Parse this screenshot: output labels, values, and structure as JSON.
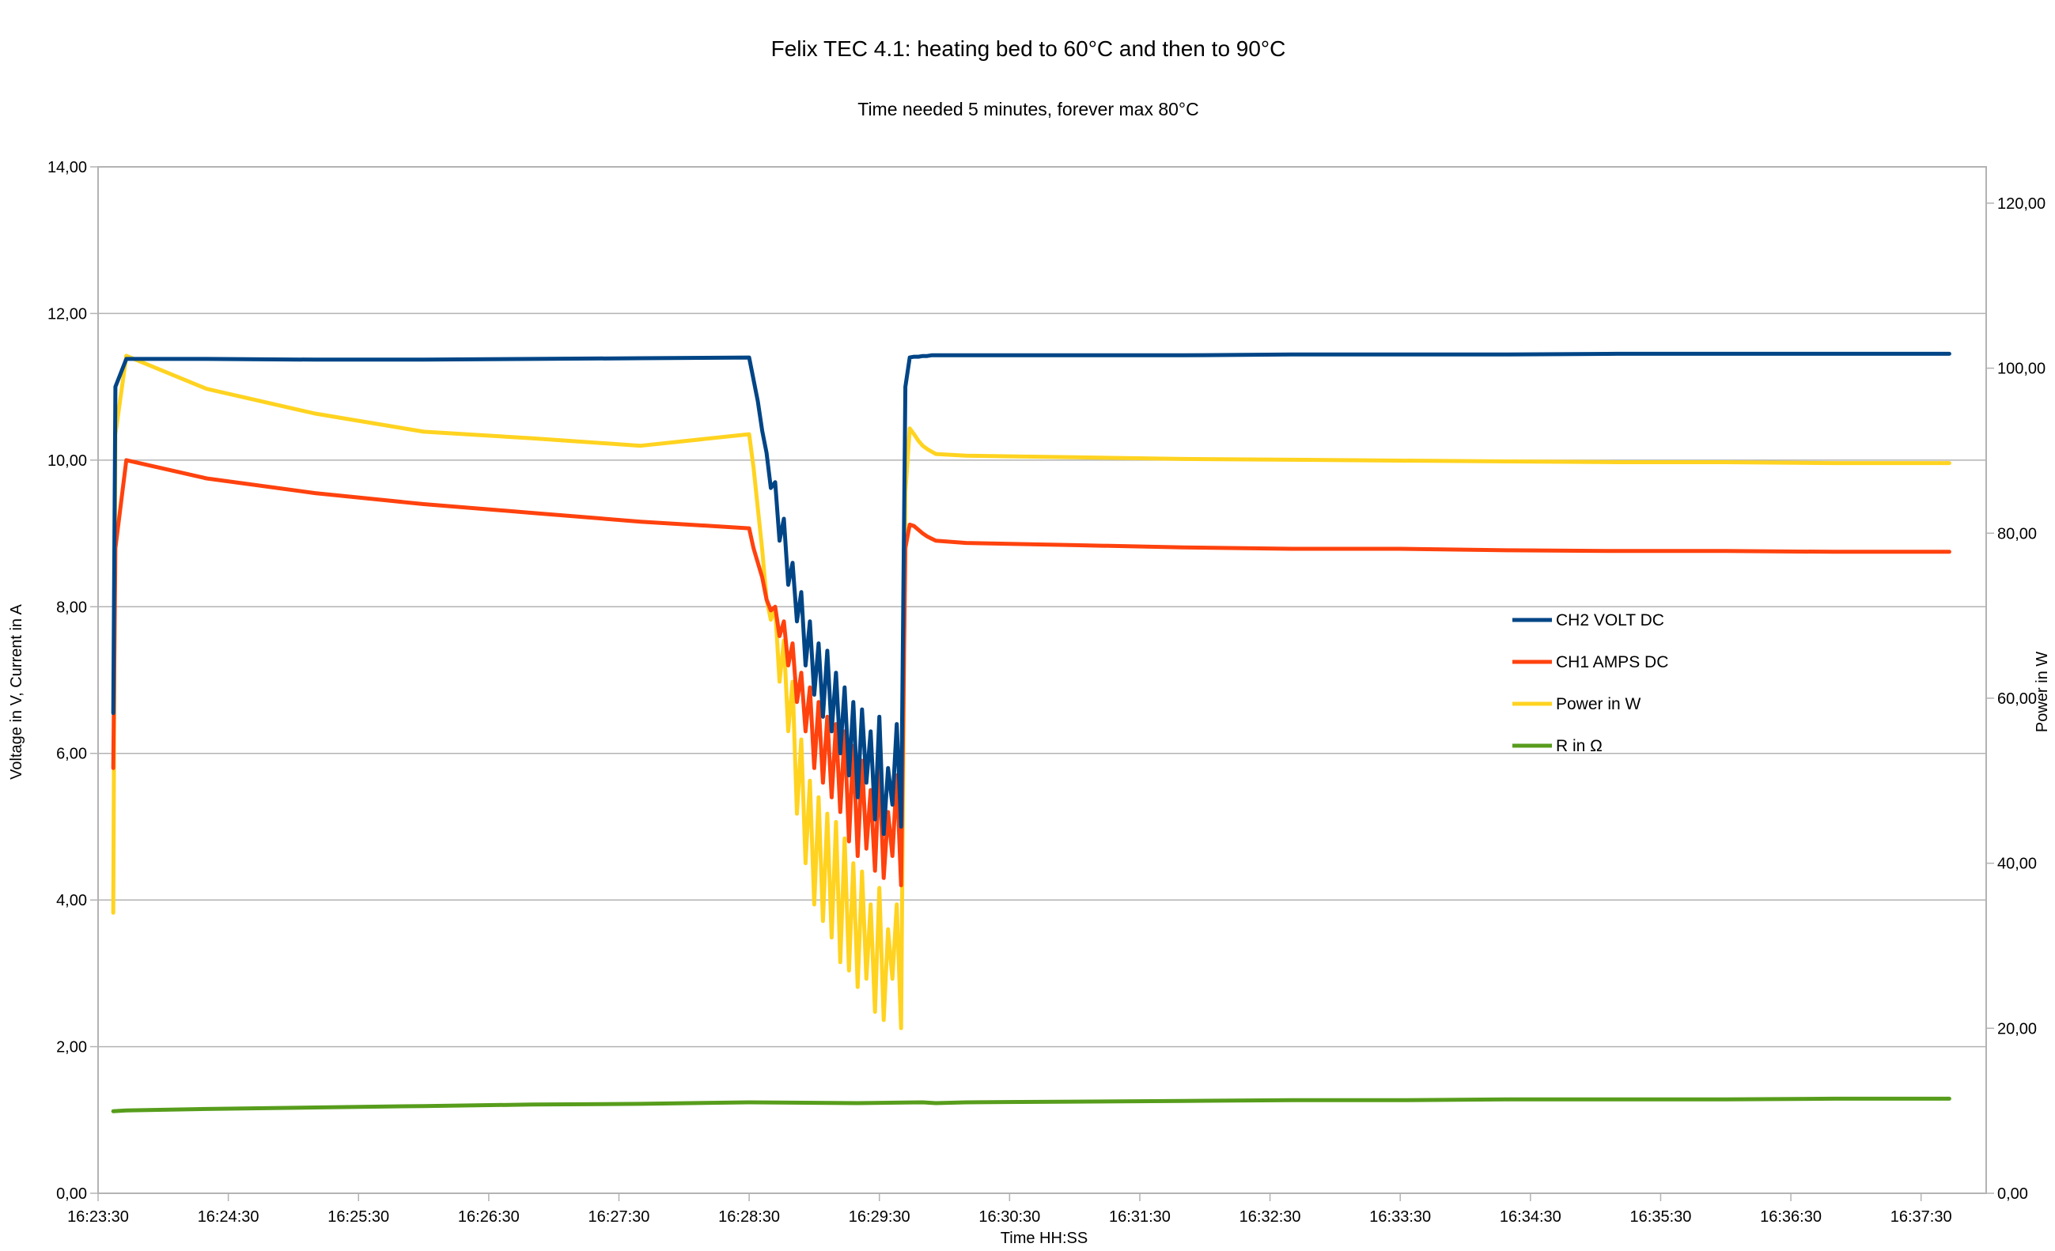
{
  "chart_data": {
    "type": "line",
    "title": "Felix TEC 4.1: heating bed to 60°C and then to 90°C",
    "subtitle": "Time needed 5 minutes, forever max 80°C",
    "xlabel": "Time HH:SS",
    "ylabel_left": "Voltage in V, Current in A",
    "ylabel_right": "Power in W",
    "x_tick_labels": [
      "16:23:30",
      "16:24:30",
      "16:25:30",
      "16:26:30",
      "16:27:30",
      "16:28:30",
      "16:29:30",
      "16:30:30",
      "16:31:30",
      "16:32:30",
      "16:33:30",
      "16:34:30",
      "16:35:30",
      "16:36:30",
      "16:37:30"
    ],
    "y_left_ticks": [
      "0,00",
      "2,00",
      "4,00",
      "6,00",
      "8,00",
      "10,00",
      "12,00",
      "14,00"
    ],
    "y_right_ticks": [
      "0,00",
      "20,00",
      "40,00",
      "60,00",
      "80,00",
      "100,00",
      "120,00"
    ],
    "y_left_lim": [
      0,
      14
    ],
    "y_right_lim": [
      0,
      124.4
    ],
    "x_unit": "seconds since 16:23:30",
    "x_lim": [
      0,
      870
    ],
    "grid": "horizontal",
    "legend_position": "right",
    "series": [
      {
        "name": "CH2 VOLT DC",
        "color": "#004586",
        "axis": "left",
        "x": [
          7,
          8,
          13,
          50,
          100,
          150,
          200,
          250,
          300,
          302,
          304,
          306,
          308,
          310,
          312,
          314,
          316,
          318,
          320,
          322,
          324,
          326,
          328,
          330,
          332,
          334,
          336,
          338,
          340,
          342,
          344,
          346,
          348,
          350,
          352,
          354,
          356,
          358,
          360,
          362,
          364,
          366,
          368,
          370,
          372,
          374,
          376,
          378,
          380,
          382,
          384,
          386,
          400,
          450,
          500,
          550,
          600,
          650,
          700,
          750,
          800,
          853
        ],
        "y": [
          6.55,
          11.0,
          11.38,
          11.38,
          11.37,
          11.37,
          11.38,
          11.39,
          11.4,
          11.1,
          10.8,
          10.4,
          10.1,
          9.62,
          9.7,
          8.9,
          9.2,
          8.3,
          8.6,
          7.8,
          8.2,
          7.2,
          7.8,
          6.8,
          7.5,
          6.5,
          7.4,
          6.3,
          7.1,
          6.0,
          6.9,
          5.7,
          6.7,
          5.4,
          6.6,
          5.6,
          6.3,
          5.1,
          6.5,
          4.9,
          5.8,
          5.3,
          6.4,
          5.0,
          11.0,
          11.4,
          11.41,
          11.41,
          11.42,
          11.42,
          11.43,
          11.43,
          11.43,
          11.43,
          11.43,
          11.44,
          11.44,
          11.44,
          11.45,
          11.45,
          11.45,
          11.45
        ]
      },
      {
        "name": "CH1 AMPS DC",
        "color": "#ff420e",
        "axis": "left",
        "x": [
          7,
          8,
          13,
          50,
          100,
          150,
          200,
          250,
          300,
          302,
          304,
          306,
          308,
          310,
          312,
          314,
          316,
          318,
          320,
          322,
          324,
          326,
          328,
          330,
          332,
          334,
          336,
          338,
          340,
          342,
          344,
          346,
          348,
          350,
          352,
          354,
          356,
          358,
          360,
          362,
          364,
          366,
          368,
          370,
          372,
          374,
          376,
          378,
          380,
          382,
          384,
          386,
          400,
          450,
          500,
          550,
          600,
          650,
          700,
          750,
          800,
          853
        ],
        "y": [
          5.8,
          8.8,
          10.0,
          9.75,
          9.55,
          9.4,
          9.28,
          9.16,
          9.07,
          8.8,
          8.6,
          8.4,
          8.1,
          7.95,
          8.0,
          7.6,
          7.8,
          7.2,
          7.5,
          6.7,
          7.1,
          6.3,
          6.9,
          5.8,
          6.7,
          5.6,
          6.5,
          5.4,
          6.4,
          5.2,
          6.3,
          4.8,
          6.1,
          4.6,
          5.9,
          4.7,
          5.5,
          4.4,
          5.8,
          4.3,
          5.2,
          4.6,
          5.7,
          4.2,
          8.8,
          9.12,
          9.1,
          9.05,
          9.0,
          8.96,
          8.93,
          8.9,
          8.87,
          8.84,
          8.81,
          8.79,
          8.79,
          8.77,
          8.76,
          8.76,
          8.75,
          8.75
        ]
      },
      {
        "name": "Power in W",
        "color": "#ffd320",
        "axis": "right",
        "x": [
          7,
          8,
          13,
          50,
          100,
          150,
          200,
          250,
          300,
          302,
          304,
          306,
          308,
          310,
          312,
          314,
          316,
          318,
          320,
          322,
          324,
          326,
          328,
          330,
          332,
          334,
          336,
          338,
          340,
          342,
          344,
          346,
          348,
          350,
          352,
          354,
          356,
          358,
          360,
          362,
          364,
          366,
          368,
          370,
          372,
          374,
          376,
          378,
          380,
          382,
          384,
          386,
          400,
          450,
          500,
          550,
          600,
          650,
          700,
          750,
          800,
          853
        ],
        "y": [
          34.0,
          92.0,
          101.5,
          97.5,
          94.5,
          92.3,
          91.5,
          90.6,
          92.0,
          88.0,
          83.0,
          78.0,
          72.0,
          69.5,
          71.0,
          62.0,
          67.0,
          56.0,
          62.0,
          46.0,
          55.0,
          40.0,
          50.0,
          35.0,
          48.0,
          33.0,
          46.0,
          31.0,
          45.0,
          28.0,
          43.0,
          27.0,
          40.0,
          25.0,
          39.0,
          26.0,
          35.0,
          22.0,
          37.0,
          21.0,
          32.0,
          26.0,
          35.0,
          20.0,
          85.0,
          92.7,
          92.0,
          91.2,
          90.6,
          90.2,
          89.9,
          89.6,
          89.4,
          89.2,
          89.0,
          88.9,
          88.8,
          88.7,
          88.6,
          88.6,
          88.5,
          88.5
        ]
      },
      {
        "name": "R in Ω",
        "color": "#579d1c",
        "axis": "left",
        "x": [
          7,
          13,
          50,
          100,
          150,
          200,
          250,
          300,
          350,
          380,
          386,
          400,
          450,
          500,
          550,
          600,
          650,
          700,
          750,
          800,
          853
        ],
        "y": [
          1.12,
          1.13,
          1.15,
          1.17,
          1.19,
          1.21,
          1.22,
          1.24,
          1.23,
          1.24,
          1.23,
          1.24,
          1.25,
          1.26,
          1.27,
          1.27,
          1.28,
          1.28,
          1.28,
          1.29,
          1.29
        ]
      }
    ]
  }
}
